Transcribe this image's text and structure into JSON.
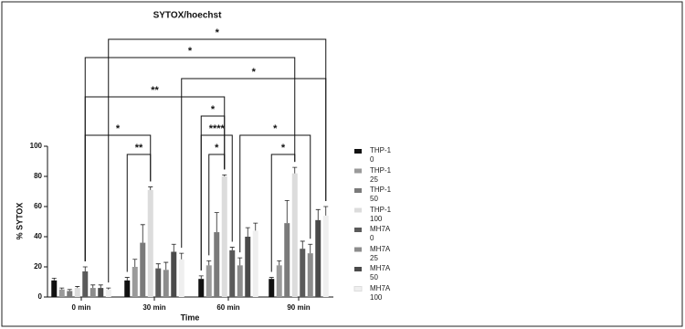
{
  "chart_data": {
    "type": "bar",
    "title": "SYTOX/hoechst",
    "x_label": "Time",
    "y_label": "% SYTOX",
    "categories": [
      "0 min",
      "30 min",
      "60 min",
      "90 min"
    ],
    "ylim": [
      0,
      100
    ],
    "yticks": [
      0,
      20,
      40,
      60,
      80,
      100
    ],
    "series": [
      {
        "name": "THP-1 0",
        "color": "#111111",
        "values": [
          11,
          11,
          12,
          12
        ],
        "errors": [
          1.5,
          2,
          2,
          1
        ]
      },
      {
        "name": "THP-1 25",
        "color": "#9a9a9a",
        "values": [
          5,
          20,
          21,
          21
        ],
        "errors": [
          1,
          5,
          3,
          3
        ]
      },
      {
        "name": "THP-1 50",
        "color": "#7a7a7a",
        "values": [
          4,
          36,
          43,
          49
        ],
        "errors": [
          1,
          12,
          13,
          15
        ]
      },
      {
        "name": "THP-1 100",
        "color": "#dcdcdc",
        "values": [
          6,
          71,
          80,
          82
        ],
        "errors": [
          1,
          2,
          1,
          4
        ]
      },
      {
        "name": "MH7A 0",
        "color": "#5a5a5a",
        "values": [
          17,
          19,
          31,
          32
        ],
        "errors": [
          3,
          3,
          2,
          5
        ]
      },
      {
        "name": "MH7A 25",
        "color": "#8c8c8c",
        "values": [
          6,
          18,
          21,
          29
        ],
        "errors": [
          2,
          5,
          5,
          6
        ]
      },
      {
        "name": "MH7A 50",
        "color": "#4a4a4a",
        "values": [
          6,
          30,
          40,
          51
        ],
        "errors": [
          2,
          5,
          6,
          7
        ]
      },
      {
        "name": "MH7A 100",
        "color": "#efefef",
        "values": [
          5,
          25,
          44,
          54
        ],
        "errors": [
          1,
          4,
          5,
          6
        ]
      }
    ],
    "annotations": [
      "*",
      "*",
      "*",
      "**",
      "*",
      "*",
      "****",
      "*",
      "**",
      "*",
      "*"
    ]
  }
}
